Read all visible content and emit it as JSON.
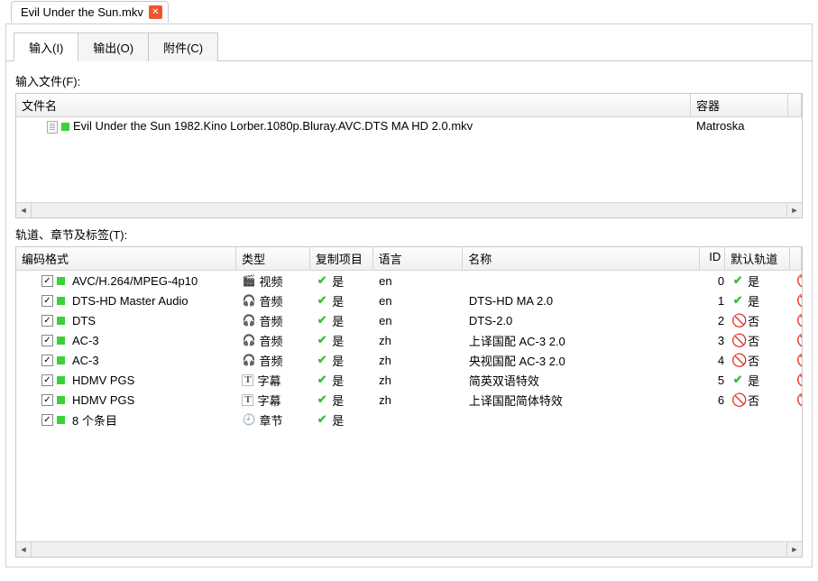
{
  "fileTab": {
    "title": "Evil Under the Sun.mkv"
  },
  "tabs": {
    "input": "输入(I)",
    "output": "输出(O)",
    "attach": "附件(C)"
  },
  "labels": {
    "inputFiles": "输入文件(F):",
    "tracks": "轨道、章节及标签(T):"
  },
  "fileCols": {
    "name": "文件名",
    "container": "容器"
  },
  "files": [
    {
      "name": "Evil Under the Sun 1982.Kino Lorber.1080p.Bluray.AVC.DTS MA HD 2.0.mkv",
      "container": "Matroska"
    }
  ],
  "trackCols": {
    "codec": "编码格式",
    "type": "类型",
    "copy": "复制项目",
    "lang": "语言",
    "name": "名称",
    "id": "ID",
    "def": "默认轨道"
  },
  "typeLabels": {
    "video": "视频",
    "audio": "音频",
    "subtitle": "字幕",
    "chapter": "章节"
  },
  "yesText": "是",
  "noText": "否",
  "tracks": [
    {
      "checked": true,
      "codec": "AVC/H.264/MPEG-4p10",
      "type": "video",
      "typeIcon": "🎬",
      "copy": true,
      "lang": "en",
      "name": "",
      "id": "0",
      "deflt": true
    },
    {
      "checked": true,
      "codec": "DTS-HD Master Audio",
      "type": "audio",
      "typeIcon": "🎧",
      "copy": true,
      "lang": "en",
      "name": "DTS-HD MA 2.0",
      "id": "1",
      "deflt": true
    },
    {
      "checked": true,
      "codec": "DTS",
      "type": "audio",
      "typeIcon": "🎧",
      "copy": true,
      "lang": "en",
      "name": "DTS-2.0",
      "id": "2",
      "deflt": false
    },
    {
      "checked": true,
      "codec": "AC-3",
      "type": "audio",
      "typeIcon": "🎧",
      "copy": true,
      "lang": "zh",
      "name": "上译国配 AC-3 2.0",
      "id": "3",
      "deflt": false
    },
    {
      "checked": true,
      "codec": "AC-3",
      "type": "audio",
      "typeIcon": "🎧",
      "copy": true,
      "lang": "zh",
      "name": "央视国配 AC-3 2.0",
      "id": "4",
      "deflt": false
    },
    {
      "checked": true,
      "codec": "HDMV PGS",
      "type": "subtitle",
      "typeIcon": "T",
      "copy": true,
      "lang": "zh",
      "name": "简英双语特效",
      "id": "5",
      "deflt": true
    },
    {
      "checked": true,
      "codec": "HDMV PGS",
      "type": "subtitle",
      "typeIcon": "T",
      "copy": true,
      "lang": "zh",
      "name": "上译国配简体特效",
      "id": "6",
      "deflt": false
    },
    {
      "checked": true,
      "codec": "8 个条目",
      "type": "chapter",
      "typeIcon": "🕘",
      "copy": true,
      "lang": "",
      "name": "",
      "id": "",
      "deflt": null
    }
  ]
}
